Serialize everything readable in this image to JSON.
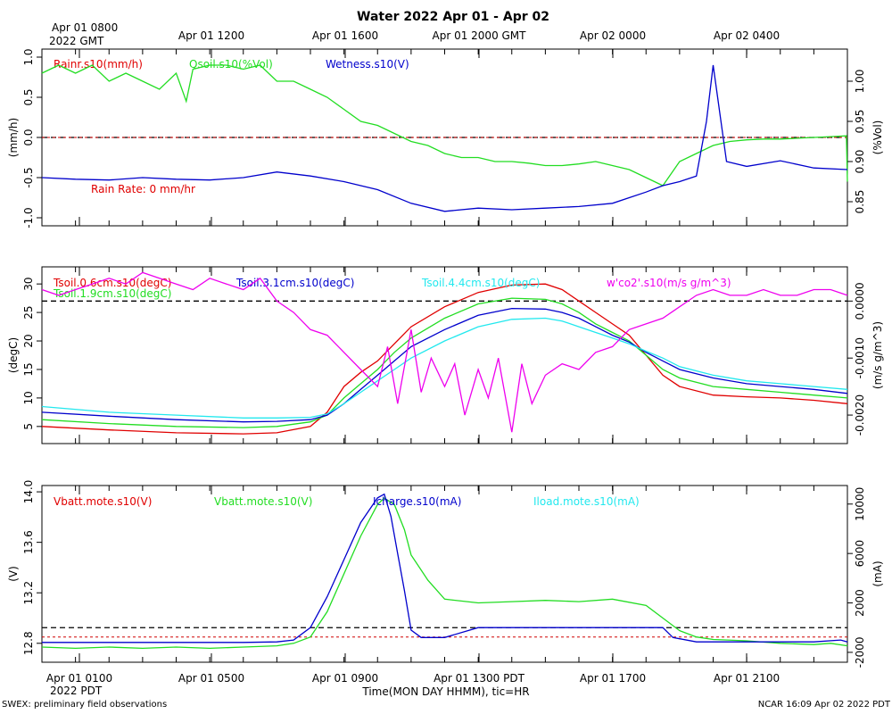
{
  "header": {
    "title": "Water 2022 Apr 01 - Apr 02",
    "top_first_label_line1": "Apr 01 0800",
    "top_first_label_line2": "2022 GMT",
    "top_tick_labels": [
      "Apr 01 1200",
      "Apr 01 1600",
      "Apr 01 2000 GMT",
      "Apr 02 0000",
      "Apr 02 0400"
    ]
  },
  "footer": {
    "x_label": "Time(MON DAY HHMM), tic=HR",
    "bottom_first_label_line1": "Apr 01 0100",
    "bottom_first_label_line2": "2022 PDT",
    "bottom_tick_labels": [
      "Apr 01 0500",
      "Apr 01 0900",
      "Apr 01 1300 PDT",
      "Apr 01 1700",
      "Apr 01 2100"
    ],
    "left_note": "SWEX: preliminary field observations",
    "right_note": "NCAR 16:09 Apr 02 2022 PDT"
  },
  "colors": {
    "red": "#e00000",
    "green": "#22dd22",
    "blue": "#0000cc",
    "cyan": "#22e8ee",
    "magenta": "#ee00ee",
    "axis": "#000000"
  },
  "chart_data": [
    {
      "type": "line",
      "panel": "water",
      "x_range_hours": [
        0,
        24
      ],
      "left_axis": {
        "label": "(mm/h)",
        "ylim": [
          -1.1,
          1.1
        ],
        "ticks": [
          -1.0,
          -0.5,
          0.0,
          0.5,
          1.0
        ],
        "tick_labels": [
          "-1.0",
          "-0.5",
          "0.0",
          "0.5",
          "1.0"
        ]
      },
      "right_axis": {
        "label": "(%Vol)",
        "ylim": [
          0.82,
          1.04
        ],
        "ticks": [
          0.85,
          0.9,
          0.95,
          1.0
        ],
        "tick_labels": [
          "0.85",
          "0.90",
          "0.95",
          "1.00"
        ]
      },
      "reference_lines": [
        {
          "axis": "left",
          "value": 0.0
        }
      ],
      "annotation": "Rain Rate: 0 mm/hr",
      "series": [
        {
          "name": "Rainr.s10(mm/h)",
          "color": "red",
          "axis": "left",
          "x": [
            0,
            24
          ],
          "values": [
            0.0,
            0.0
          ]
        },
        {
          "name": "Qsoil.s10(%Vol)",
          "color": "green",
          "axis": "right",
          "x": [
            0,
            0.5,
            1.0,
            1.5,
            2.0,
            2.5,
            3.0,
            3.5,
            4.0,
            4.3,
            4.5,
            5.0,
            5.5,
            6.0,
            6.5,
            7.0,
            7.5,
            8.0,
            8.5,
            9.0,
            9.5,
            10.0,
            10.5,
            11.0,
            11.5,
            12.0,
            12.5,
            13.0,
            13.5,
            14.0,
            14.5,
            15.0,
            15.5,
            16.0,
            16.5,
            17.0,
            17.5,
            18.0,
            18.5,
            19.0,
            19.5,
            20.0,
            20.5,
            21.0,
            21.5,
            22.0,
            22.5,
            23.0,
            23.5,
            23.97,
            24.0
          ],
          "values": [
            1.01,
            1.02,
            1.01,
            1.02,
            1.0,
            1.01,
            1.0,
            0.99,
            1.01,
            0.975,
            1.015,
            1.02,
            1.02,
            1.015,
            1.02,
            1.0,
            1.0,
            0.99,
            0.98,
            0.965,
            0.95,
            0.945,
            0.935,
            0.925,
            0.92,
            0.91,
            0.905,
            0.905,
            0.9,
            0.9,
            0.898,
            0.895,
            0.895,
            0.897,
            0.9,
            0.895,
            0.89,
            0.88,
            0.87,
            0.9,
            0.91,
            0.92,
            0.925,
            0.927,
            0.928,
            0.928,
            0.929,
            0.93,
            0.931,
            0.932,
            0.875
          ]
        },
        {
          "name": "Wetness.s10(V)",
          "color": "blue",
          "axis": "left",
          "x": [
            0,
            1,
            2,
            3,
            4,
            5,
            6,
            7,
            8,
            9,
            10,
            11,
            12,
            13,
            14,
            15,
            16,
            17,
            17.5,
            18,
            18.5,
            19.0,
            19.5,
            19.8,
            20.0,
            20.2,
            20.4,
            21,
            22,
            23,
            24
          ],
          "values": [
            -0.5,
            -0.52,
            -0.53,
            -0.5,
            -0.52,
            -0.53,
            -0.5,
            -0.43,
            -0.48,
            -0.55,
            -0.65,
            -0.82,
            -0.92,
            -0.88,
            -0.9,
            -0.88,
            -0.86,
            -0.82,
            -0.75,
            -0.68,
            -0.6,
            -0.55,
            -0.48,
            0.2,
            0.9,
            0.3,
            -0.3,
            -0.36,
            -0.29,
            -0.38,
            -0.4
          ]
        }
      ]
    },
    {
      "type": "line",
      "panel": "soil temperature",
      "x_range_hours": [
        0,
        24
      ],
      "left_axis": {
        "label": "(degC)",
        "ylim": [
          2,
          33
        ],
        "ticks": [
          5,
          10,
          15,
          20,
          25,
          30
        ],
        "tick_labels": [
          "5",
          "10",
          "15",
          "20",
          "25",
          "30"
        ]
      },
      "right_axis": {
        "label": "(m/s g/m^3)",
        "ylim": [
          -0.0025,
          0.0006
        ],
        "ticks": [
          -0.002,
          -0.001,
          0.0
        ],
        "tick_labels": [
          "-0.0020",
          "-0.0010",
          "0.0000"
        ]
      },
      "reference_lines": [
        {
          "axis": "right",
          "value": 0.0
        }
      ],
      "series": [
        {
          "name": "Tsoil.0.6cm.s10(degC)",
          "color": "red",
          "axis": "left",
          "x": [
            0,
            2,
            4,
            6,
            7,
            8,
            8.5,
            9,
            9.5,
            10,
            10.5,
            11,
            12,
            13,
            14,
            15,
            15.5,
            16,
            16.5,
            17,
            17.5,
            18,
            18.5,
            19,
            20,
            21,
            22,
            23,
            24
          ],
          "values": [
            5.0,
            4.4,
            3.9,
            3.7,
            3.9,
            5.0,
            7.5,
            12.0,
            14.5,
            16.5,
            19.5,
            22.5,
            26.0,
            28.5,
            29.8,
            30.0,
            29.0,
            27.0,
            25.0,
            23.0,
            21.0,
            17.5,
            14.0,
            12.0,
            10.5,
            10.2,
            10.0,
            9.6,
            9.0
          ]
        },
        {
          "name": "Tsoil.1.9cm.s10(degC)",
          "color": "green",
          "axis": "left",
          "x": [
            0,
            2,
            4,
            6,
            7,
            8,
            8.5,
            9,
            9.5,
            10,
            10.5,
            11,
            12,
            13,
            14,
            15,
            15.5,
            16,
            16.5,
            17,
            17.5,
            18,
            18.5,
            19,
            20,
            21,
            22,
            23,
            24
          ],
          "values": [
            6.2,
            5.5,
            5.0,
            4.8,
            5.0,
            5.8,
            7.0,
            10.0,
            12.5,
            15.0,
            18.0,
            20.5,
            24.0,
            26.5,
            27.5,
            27.3,
            26.5,
            25.0,
            23.0,
            21.5,
            20.0,
            17.5,
            15.0,
            13.5,
            12.0,
            11.5,
            11.0,
            10.5,
            10.0
          ]
        },
        {
          "name": "Tsoil.3.1cm.s10(degC)",
          "color": "blue",
          "axis": "left",
          "x": [
            0,
            2,
            4,
            6,
            7,
            8,
            8.5,
            9,
            9.5,
            10,
            10.5,
            11,
            12,
            13,
            14,
            15,
            15.5,
            16,
            16.5,
            17,
            17.5,
            18,
            18.5,
            19,
            20,
            21,
            22,
            23,
            24
          ],
          "values": [
            7.5,
            6.8,
            6.2,
            5.8,
            5.9,
            6.2,
            7.0,
            9.0,
            11.5,
            14.0,
            16.5,
            19.0,
            22.0,
            24.5,
            25.7,
            25.6,
            25.0,
            24.0,
            22.5,
            21.0,
            19.8,
            18.0,
            16.5,
            15.0,
            13.5,
            12.5,
            12.0,
            11.5,
            10.8
          ]
        },
        {
          "name": "Tsoil.4.4cm.s10(degC)",
          "color": "cyan",
          "axis": "left",
          "x": [
            0,
            2,
            4,
            6,
            7,
            8,
            8.5,
            9,
            9.5,
            10,
            10.5,
            11,
            12,
            13,
            14,
            15,
            15.5,
            16,
            16.5,
            17,
            17.5,
            18,
            18.5,
            19,
            20,
            21,
            22,
            23,
            24
          ],
          "values": [
            8.5,
            7.5,
            7.0,
            6.5,
            6.5,
            6.6,
            7.2,
            9.0,
            11.0,
            13.0,
            15.0,
            17.0,
            20.0,
            22.5,
            23.8,
            24.0,
            23.5,
            22.5,
            21.5,
            20.5,
            19.5,
            18.2,
            17.0,
            15.5,
            14.0,
            13.0,
            12.5,
            12.0,
            11.5
          ]
        },
        {
          "name": "w'co2'.s10(m/s g/m^3)",
          "color": "magenta",
          "axis": "right",
          "x": [
            0,
            0.5,
            1,
            1.5,
            2,
            2.5,
            3,
            3.5,
            4,
            4.5,
            5,
            5.5,
            6,
            6.5,
            7,
            7.5,
            8,
            8.5,
            9,
            9.5,
            10,
            10.3,
            10.6,
            11,
            11.3,
            11.6,
            12,
            12.3,
            12.6,
            13,
            13.3,
            13.6,
            14,
            14.3,
            14.6,
            15,
            15.5,
            16,
            16.5,
            17,
            17.5,
            18,
            18.5,
            19,
            19.5,
            20,
            20.5,
            21,
            21.5,
            22,
            22.5,
            23,
            23.5,
            24
          ],
          "values": [
            0.0002,
            0.0001,
            0.0002,
            0.0003,
            0.0004,
            0.0003,
            0.0005,
            0.0004,
            0.0003,
            0.0002,
            0.0004,
            0.0003,
            0.0002,
            0.0004,
            0.0,
            -0.0002,
            -0.0005,
            -0.0006,
            -0.0009,
            -0.0012,
            -0.0015,
            -0.0008,
            -0.0018,
            -0.0005,
            -0.0016,
            -0.001,
            -0.0015,
            -0.0011,
            -0.002,
            -0.0012,
            -0.0017,
            -0.001,
            -0.0023,
            -0.0011,
            -0.0018,
            -0.0013,
            -0.0011,
            -0.0012,
            -0.0009,
            -0.0008,
            -0.0005,
            -0.0004,
            -0.0003,
            -0.0001,
            0.0001,
            0.0002,
            0.0001,
            0.0001,
            0.0002,
            0.0001,
            0.0001,
            0.0002,
            0.0002,
            0.0001
          ]
        }
      ]
    },
    {
      "type": "line",
      "panel": "power",
      "x_range_hours": [
        0,
        24
      ],
      "left_axis": {
        "label": "(V)",
        "ylim": [
          12.65,
          14.05
        ],
        "ticks": [
          12.8,
          13.2,
          13.6,
          14.0
        ],
        "tick_labels": [
          "12.8",
          "13.2",
          "13.6",
          "14.0"
        ]
      },
      "right_axis": {
        "label": "(mA)",
        "ylim": [
          -2800,
          11500
        ],
        "ticks": [
          -2000,
          2000,
          6000,
          10000
        ],
        "tick_labels": [
          "-2000",
          "2000",
          "6000",
          "10000"
        ]
      },
      "reference_lines": [
        {
          "axis": "right",
          "value": 0
        }
      ],
      "series": [
        {
          "name": "Vbatt.mote.s10(V)",
          "color": "red",
          "axis": "left",
          "x": [
            0,
            24
          ],
          "values": [
            12.85,
            12.85
          ]
        },
        {
          "name": "Vbatt.mote.s10(V)",
          "color": "green",
          "axis": "left",
          "x": [
            0,
            1,
            2,
            3,
            4,
            5,
            6,
            7,
            7.5,
            8,
            8.5,
            9,
            9.5,
            10,
            10.2,
            10.5,
            10.8,
            11,
            11.5,
            12,
            13,
            14,
            15,
            16,
            17,
            18,
            18.5,
            19,
            19.5,
            20,
            21,
            22,
            23,
            23.5,
            24
          ],
          "values": [
            12.77,
            12.76,
            12.77,
            12.76,
            12.77,
            12.76,
            12.77,
            12.78,
            12.8,
            12.85,
            13.05,
            13.35,
            13.65,
            13.9,
            13.95,
            13.9,
            13.7,
            13.5,
            13.3,
            13.15,
            13.12,
            13.13,
            13.14,
            13.13,
            13.15,
            13.1,
            13.0,
            12.9,
            12.85,
            12.83,
            12.82,
            12.8,
            12.79,
            12.8,
            12.78
          ]
        },
        {
          "name": "Icharge.s10(mA)",
          "color": "blue",
          "axis": "right",
          "x": [
            0,
            2,
            4,
            6,
            7,
            7.5,
            8,
            8.5,
            9,
            9.5,
            10,
            10.2,
            10.4,
            10.6,
            10.8,
            11,
            11.3,
            12,
            13,
            14,
            15,
            16,
            17,
            18,
            18.5,
            18.8,
            19.5,
            20,
            21,
            22,
            23,
            23.8,
            24
          ],
          "values": [
            -1200,
            -1200,
            -1200,
            -1200,
            -1150,
            -1000,
            0,
            2500,
            5500,
            8500,
            10500,
            10800,
            9000,
            6000,
            3000,
            -200,
            -800,
            -800,
            0,
            0,
            0,
            0,
            0,
            0,
            0,
            -800,
            -1150,
            -1150,
            -1150,
            -1150,
            -1150,
            -1000,
            -1150
          ]
        },
        {
          "name": "Iload.mote.s10(mA)",
          "color": "cyan",
          "axis": "right",
          "x": [],
          "values": []
        }
      ]
    }
  ]
}
